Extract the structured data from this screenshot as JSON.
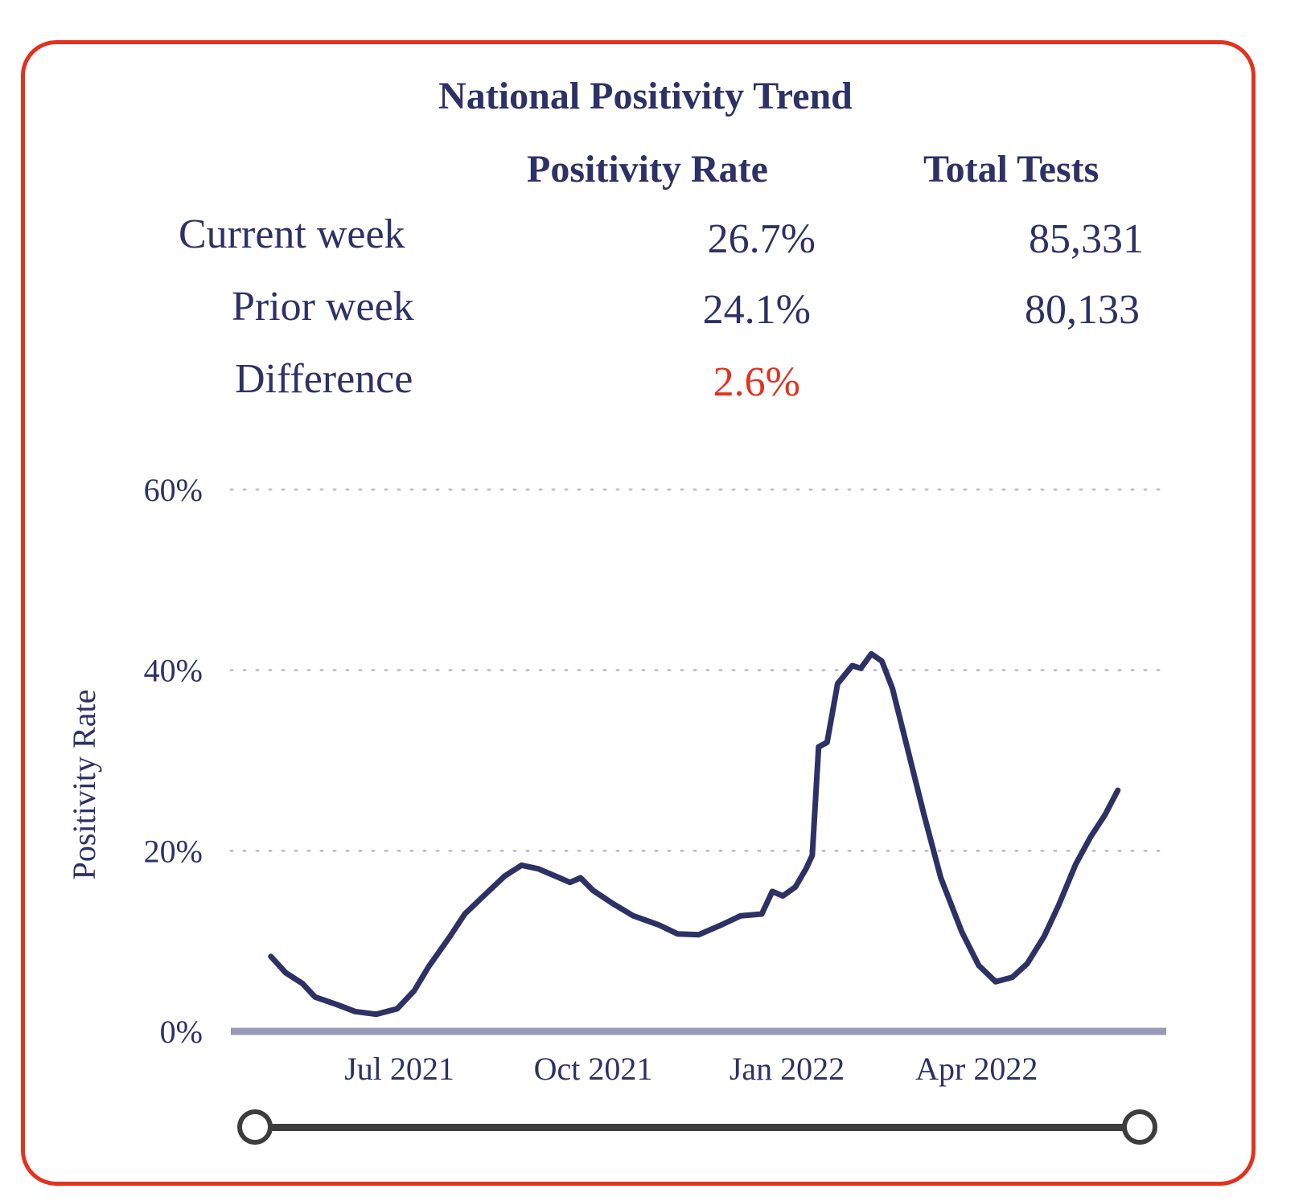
{
  "title": "National Positivity Trend",
  "table": {
    "headers": [
      "Positivity Rate",
      "Total Tests"
    ],
    "rows": [
      {
        "label": "Current week",
        "rate": "26.7%",
        "tests": "85,331"
      },
      {
        "label": "Prior week",
        "rate": "24.1%",
        "tests": "80,133"
      },
      {
        "label": "Difference",
        "rate": "2.6%",
        "tests": ""
      }
    ]
  },
  "colors": {
    "text": "#2e3165",
    "line": "#2e3165",
    "difference": "#e3311d",
    "border": "#e3311d",
    "baseline": "#9898b8",
    "slider": "#3d3d3d"
  },
  "chart_data": {
    "type": "line",
    "title": "",
    "xlabel": "",
    "ylabel": "Positivity Rate",
    "ylim": [
      0,
      60
    ],
    "y_ticks": [
      0,
      20,
      40,
      60
    ],
    "y_tick_labels": [
      "0%",
      "20%",
      "40%",
      "60%"
    ],
    "x_tick_labels": [
      "Jul 2021",
      "Oct 2021",
      "Jan 2022",
      "Apr 2022"
    ],
    "x_tick_dates": [
      "2021-07-01",
      "2021-10-01",
      "2022-01-01",
      "2022-04-01"
    ],
    "grid": "horizontal dotted",
    "series": [
      {
        "values": [
          [
            "2021-05-01",
            8.3
          ],
          [
            "2021-05-08",
            6.5
          ],
          [
            "2021-05-16",
            5.3
          ],
          [
            "2021-05-22",
            3.8
          ],
          [
            "2021-06-01",
            3.0
          ],
          [
            "2021-06-10",
            2.2
          ],
          [
            "2021-06-20",
            1.9
          ],
          [
            "2021-06-30",
            2.5
          ],
          [
            "2021-07-08",
            4.5
          ],
          [
            "2021-07-15",
            7.2
          ],
          [
            "2021-07-25",
            10.5
          ],
          [
            "2021-08-01",
            13.0
          ],
          [
            "2021-08-10",
            15.0
          ],
          [
            "2021-08-20",
            17.2
          ],
          [
            "2021-08-28",
            18.4
          ],
          [
            "2021-09-05",
            18.0
          ],
          [
            "2021-09-15",
            17.0
          ],
          [
            "2021-09-20",
            16.5
          ],
          [
            "2021-09-25",
            17.0
          ],
          [
            "2021-10-01",
            15.6
          ],
          [
            "2021-10-10",
            14.2
          ],
          [
            "2021-10-20",
            12.8
          ],
          [
            "2021-11-01",
            11.8
          ],
          [
            "2021-11-10",
            10.8
          ],
          [
            "2021-11-20",
            10.7
          ],
          [
            "2021-12-01",
            11.8
          ],
          [
            "2021-12-10",
            12.8
          ],
          [
            "2021-12-20",
            13.0
          ],
          [
            "2021-12-25",
            15.5
          ],
          [
            "2021-12-30",
            15.0
          ],
          [
            "2022-01-05",
            16.0
          ],
          [
            "2022-01-10",
            18.0
          ],
          [
            "2022-01-13",
            19.5
          ],
          [
            "2022-01-16",
            31.5
          ],
          [
            "2022-01-20",
            32.0
          ],
          [
            "2022-01-25",
            38.5
          ],
          [
            "2022-02-01",
            40.5
          ],
          [
            "2022-02-05",
            40.2
          ],
          [
            "2022-02-10",
            41.8
          ],
          [
            "2022-02-15",
            41.0
          ],
          [
            "2022-02-20",
            38.0
          ],
          [
            "2022-02-27",
            31.5
          ],
          [
            "2022-03-07",
            24.0
          ],
          [
            "2022-03-15",
            17.0
          ],
          [
            "2022-03-25",
            11.0
          ],
          [
            "2022-04-02",
            7.3
          ],
          [
            "2022-04-10",
            5.5
          ],
          [
            "2022-04-18",
            6.0
          ],
          [
            "2022-04-25",
            7.5
          ],
          [
            "2022-05-03",
            10.5
          ],
          [
            "2022-05-10",
            14.0
          ],
          [
            "2022-05-18",
            18.5
          ],
          [
            "2022-05-25",
            21.5
          ],
          [
            "2022-06-01",
            24.0
          ],
          [
            "2022-06-07",
            26.7
          ]
        ]
      }
    ]
  }
}
